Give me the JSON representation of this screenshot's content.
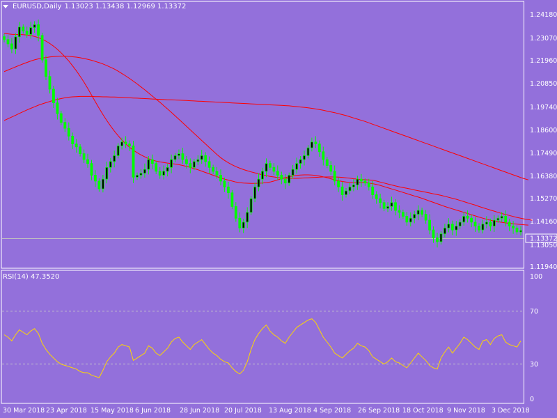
{
  "header": {
    "symbol_tf": "EURUSD,Daily",
    "ohlc": "1.13023 1.13438 1.12969 1.13372"
  },
  "price_axis": {
    "ticks": [
      "1.24180",
      "1.23070",
      "1.21960",
      "1.20850",
      "1.19740",
      "1.18600",
      "1.17490",
      "1.16380",
      "1.15270",
      "1.14160",
      "1.13050",
      "1.11940"
    ],
    "current": "1.13372"
  },
  "rsi_panel": {
    "label": "RSI(14) 47.3520",
    "levels": [
      "100",
      "70",
      "30",
      "0"
    ]
  },
  "time_axis": {
    "labels": [
      "30 Mar 2018",
      "23 Apr 2018",
      "15 May 2018",
      "6 Jun 2018",
      "28 Jun 2018",
      "20 Jul 2018",
      "13 Aug 2018",
      "4 Sep 2018",
      "26 Sep 2018",
      "18 Oct 2018",
      "9 Nov 2018",
      "3 Dec 2018"
    ]
  },
  "colors": {
    "background": "#9370DB",
    "candle": "#00FF00",
    "candle_body": "#000000",
    "moving_average": "#FF0000",
    "rsi_line": "#FFD700",
    "axis": "#FFFFFF"
  },
  "chart_data": {
    "type": "line",
    "instrument": "EURUSD",
    "timeframe": "Daily",
    "price_ylim": [
      1.1155,
      1.2445
    ],
    "rsi_ylim": [
      0,
      100
    ],
    "rsi_levels": [
      70,
      30
    ],
    "x_labels": [
      "30 Mar 2018",
      "23 Apr 2018",
      "15 May 2018",
      "6 Jun 2018",
      "28 Jun 2018",
      "20 Jul 2018",
      "13 Aug 2018",
      "4 Sep 2018",
      "26 Sep 2018",
      "18 Oct 2018",
      "9 Nov 2018",
      "3 Dec 2018"
    ],
    "close": [
      1.2314,
      1.2292,
      1.2266,
      1.2328,
      1.2378,
      1.2358,
      1.234,
      1.2375,
      1.239,
      1.2335,
      1.221,
      1.2125,
      1.206,
      1.199,
      1.1935,
      1.189,
      1.186,
      1.182,
      1.178,
      1.1765,
      1.173,
      1.17,
      1.168,
      1.162,
      1.159,
      1.155,
      1.16,
      1.166,
      1.169,
      1.172,
      1.177,
      1.179,
      1.178,
      1.177,
      1.161,
      1.162,
      1.163,
      1.165,
      1.17,
      1.168,
      1.164,
      1.162,
      1.164,
      1.166,
      1.17,
      1.172,
      1.173,
      1.17,
      1.168,
      1.166,
      1.169,
      1.17,
      1.172,
      1.169,
      1.166,
      1.164,
      1.162,
      1.159,
      1.156,
      1.153,
      1.146,
      1.14,
      1.135,
      1.138,
      1.143,
      1.15,
      1.156,
      1.16,
      1.164,
      1.168,
      1.166,
      1.164,
      1.162,
      1.16,
      1.158,
      1.162,
      1.165,
      1.168,
      1.17,
      1.172,
      1.176,
      1.179,
      1.178,
      1.174,
      1.17,
      1.167,
      1.164,
      1.159,
      1.156,
      1.152,
      1.154,
      1.156,
      1.157,
      1.16,
      1.159,
      1.158,
      1.156,
      1.152,
      1.15,
      1.148,
      1.145,
      1.146,
      1.148,
      1.144,
      1.143,
      1.141,
      1.138,
      1.14,
      1.142,
      1.144,
      1.142,
      1.139,
      1.134,
      1.13,
      1.128,
      1.132,
      1.135,
      1.137,
      1.134,
      1.136,
      1.138,
      1.141,
      1.14,
      1.138,
      1.136,
      1.134,
      1.137,
      1.138,
      1.136,
      1.139,
      1.14,
      1.141,
      1.138,
      1.136,
      1.135,
      1.133,
      1.1337
    ],
    "ma_fast": [
      1.2345,
      1.2343,
      1.2341,
      1.234,
      1.234,
      1.2339,
      1.2337,
      1.2334,
      1.233,
      1.2324,
      1.2316,
      1.2306,
      1.2294,
      1.228,
      1.2264,
      1.2246,
      1.2226,
      1.2204,
      1.218,
      1.2154,
      1.2126,
      1.2096,
      1.2064,
      1.203,
      1.1996,
      1.1962,
      1.193,
      1.19,
      1.1872,
      1.1846,
      1.1822,
      1.18,
      1.178,
      1.1763,
      1.1748,
      1.1735,
      1.1724,
      1.1714,
      1.1705,
      1.1698,
      1.1692,
      1.1688,
      1.1685,
      1.1682,
      1.168,
      1.1677,
      1.1674,
      1.167,
      1.1665,
      1.166,
      1.1654,
      1.1648,
      1.1641,
      1.1634,
      1.1627,
      1.162,
      1.1613,
      1.1606,
      1.16,
      1.1595,
      1.159,
      1.1585,
      1.1582,
      1.158,
      1.1579,
      1.1578,
      1.1578,
      1.1579,
      1.158,
      1.1582,
      1.1585,
      1.159,
      1.1596,
      1.1602,
      1.1608,
      1.1612,
      1.1616,
      1.1619,
      1.1621,
      1.1622,
      1.1622,
      1.1621,
      1.1619,
      1.1616,
      1.1612,
      1.1607,
      1.1602,
      1.1597,
      1.1592,
      1.1588,
      1.1585,
      1.1583,
      1.1582,
      1.1582,
      1.1582,
      1.1582,
      1.158,
      1.1577,
      1.1573,
      1.1568,
      1.1562,
      1.1556,
      1.155,
      1.1544,
      1.1538,
      1.1532,
      1.1526,
      1.152,
      1.1514,
      1.1508,
      1.1502,
      1.1495,
      1.1488,
      1.1481,
      1.1474,
      1.1467,
      1.146,
      1.1454,
      1.1448,
      1.1442,
      1.1436,
      1.143,
      1.1424,
      1.1418,
      1.1412,
      1.1406,
      1.14,
      1.1395,
      1.139,
      1.1386,
      1.1382,
      1.1379,
      1.1376,
      1.1374,
      1.1372,
      1.137,
      1.1368,
      1.1366,
      1.1365
    ],
    "ma_medium": [
      1.215,
      1.2158,
      1.2166,
      1.2174,
      1.2182,
      1.219,
      1.2197,
      1.2204,
      1.221,
      1.2215,
      1.2219,
      1.2222,
      1.2225,
      1.2227,
      1.2228,
      1.2229,
      1.2229,
      1.2228,
      1.2226,
      1.2224,
      1.2221,
      1.2217,
      1.2213,
      1.2208,
      1.2202,
      1.2196,
      1.2189,
      1.2181,
      1.2172,
      1.2163,
      1.2152,
      1.214,
      1.2128,
      1.2115,
      1.2101,
      1.2087,
      1.2072,
      1.2057,
      1.2041,
      1.2025,
      1.2009,
      1.1993,
      1.1976,
      1.1959,
      1.1942,
      1.1924,
      1.1906,
      1.1888,
      1.187,
      1.1852,
      1.1834,
      1.1816,
      1.1798,
      1.178,
      1.1762,
      1.1744,
      1.1726,
      1.171,
      1.1696,
      1.1684,
      1.1673,
      1.1664,
      1.1656,
      1.1649,
      1.1643,
      1.1637,
      1.1632,
      1.1627,
      1.1622,
      1.1618,
      1.1614,
      1.1611,
      1.1608,
      1.1606,
      1.1605,
      1.1604,
      1.1604,
      1.1604,
      1.1605,
      1.1606,
      1.1607,
      1.1608,
      1.1609,
      1.161,
      1.1611,
      1.1611,
      1.1611,
      1.1611,
      1.161,
      1.1609,
      1.1607,
      1.1605,
      1.1602,
      1.16,
      1.1598,
      1.1597,
      1.1596,
      1.1594,
      1.159,
      1.1585,
      1.158,
      1.1575,
      1.157,
      1.1565,
      1.1561,
      1.1557,
      1.1553,
      1.1549,
      1.1545,
      1.1541,
      1.1537,
      1.1533,
      1.1529,
      1.1525,
      1.1521,
      1.1517,
      1.1512,
      1.1507,
      1.1502,
      1.1497,
      1.1491,
      1.1485,
      1.1479,
      1.1473,
      1.1467,
      1.146,
      1.1454,
      1.1448,
      1.1442,
      1.1436,
      1.143,
      1.1424,
      1.1419,
      1.1414,
      1.1409,
      1.1404,
      1.14,
      1.1396,
      1.1393,
      1.139
    ],
    "ma_slow": [
      1.19,
      1.1909,
      1.1918,
      1.1927,
      1.1936,
      1.1945,
      1.1954,
      1.1962,
      1.197,
      1.1978,
      1.1985,
      1.1991,
      1.1997,
      1.2003,
      1.2008,
      1.2012,
      1.2016,
      1.2019,
      1.2021,
      1.2022,
      1.2023,
      1.2023,
      1.2023,
      1.2023,
      1.2022,
      1.2022,
      1.2021,
      1.2021,
      1.202,
      1.202,
      1.2019,
      1.2018,
      1.2017,
      1.2016,
      1.2015,
      1.2014,
      1.2013,
      1.2012,
      1.2011,
      1.201,
      1.2009,
      1.2008,
      1.2007,
      1.2006,
      1.2006,
      1.2005,
      1.2004,
      1.2003,
      1.2002,
      1.2001,
      1.2,
      1.1999,
      1.1998,
      1.1997,
      1.1996,
      1.1995,
      1.1994,
      1.1993,
      1.1992,
      1.1991,
      1.199,
      1.1989,
      1.1988,
      1.1987,
      1.1986,
      1.1985,
      1.1984,
      1.1983,
      1.1982,
      1.1981,
      1.198,
      1.1979,
      1.1978,
      1.1977,
      1.1976,
      1.1975,
      1.1973,
      1.1971,
      1.1969,
      1.1967,
      1.1965,
      1.1962,
      1.1959,
      1.1956,
      1.1952,
      1.1948,
      1.1944,
      1.194,
      1.1935,
      1.193,
      1.1925,
      1.1919,
      1.1913,
      1.1907,
      1.1901,
      1.1895,
      1.1888,
      1.1881,
      1.1874,
      1.1867,
      1.186,
      1.1853,
      1.1846,
      1.1839,
      1.1832,
      1.1825,
      1.1818,
      1.1811,
      1.1804,
      1.1797,
      1.179,
      1.1783,
      1.1776,
      1.1769,
      1.1762,
      1.1755,
      1.1748,
      1.1741,
      1.1734,
      1.1727,
      1.172,
      1.1713,
      1.1706,
      1.1699,
      1.1692,
      1.1685,
      1.1678,
      1.1671,
      1.1664,
      1.1657,
      1.165,
      1.1643,
      1.1636,
      1.1629,
      1.1622,
      1.1615,
      1.1608,
      1.1602,
      1.1596
    ],
    "rsi": [
      52,
      50,
      47,
      52,
      56,
      54,
      52,
      55,
      57,
      53,
      45,
      40,
      36,
      33,
      30,
      28,
      27,
      26,
      25,
      24,
      22,
      21,
      21,
      19,
      18,
      17,
      23,
      30,
      34,
      37,
      42,
      44,
      43,
      42,
      31,
      33,
      35,
      37,
      43,
      41,
      37,
      35,
      38,
      41,
      46,
      49,
      50,
      46,
      43,
      40,
      44,
      46,
      48,
      44,
      40,
      37,
      35,
      32,
      30,
      29,
      25,
      22,
      20,
      23,
      30,
      40,
      48,
      53,
      57,
      60,
      55,
      52,
      50,
      47,
      45,
      50,
      54,
      58,
      60,
      62,
      64,
      65,
      62,
      56,
      50,
      46,
      42,
      37,
      35,
      33,
      36,
      39,
      41,
      45,
      43,
      42,
      39,
      34,
      32,
      30,
      28,
      30,
      33,
      30,
      29,
      27,
      25,
      29,
      33,
      37,
      34,
      31,
      27,
      25,
      24,
      33,
      38,
      42,
      37,
      41,
      45,
      50,
      48,
      45,
      42,
      40,
      47,
      48,
      44,
      49,
      51,
      52,
      46,
      44,
      43,
      42,
      47
    ]
  }
}
